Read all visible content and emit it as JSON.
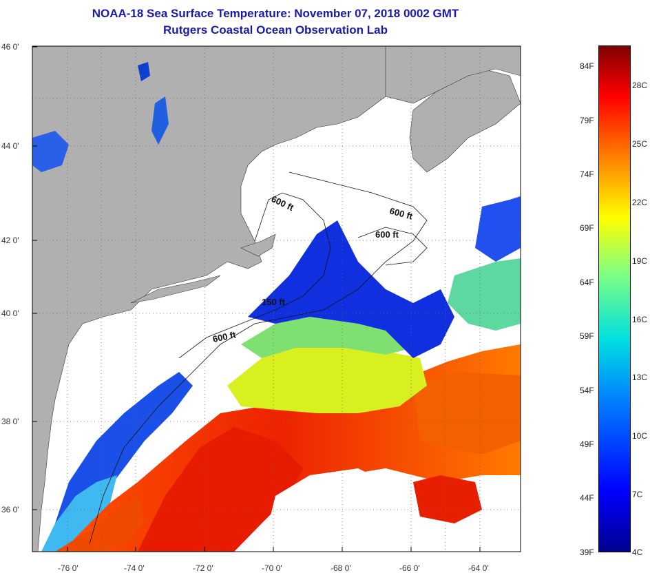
{
  "header": {
    "title": "NOAA-18 Sea Surface Temperature:  November 07, 2018 0002 GMT",
    "subtitle": "Rutgers Coastal Ocean Observation Lab"
  },
  "axes": {
    "lat_ticks": [
      "46 0'",
      "44 0'",
      "42 0'",
      "40 0'",
      "38 0'",
      "36 0'"
    ],
    "lon_ticks": [
      "-76 0'",
      "-74 0'",
      "-72 0'",
      "-70 0'",
      "-68 0'",
      "-66 0'",
      "-64 0'"
    ],
    "grid": "dotted"
  },
  "contours": [
    {
      "label": "600 ft"
    },
    {
      "label": "600 ft"
    },
    {
      "label": "600 ft"
    },
    {
      "label": "150 ft"
    },
    {
      "label": "600 ft"
    }
  ],
  "colorbar": {
    "fahrenheit": [
      "84F",
      "79F",
      "74F",
      "69F",
      "64F",
      "59F",
      "54F",
      "49F",
      "44F",
      "39F"
    ],
    "celsius": [
      "28C",
      "25C",
      "22C",
      "19C",
      "16C",
      "13C",
      "10C",
      "7C",
      "4C"
    ]
  },
  "colors": {
    "title": "#1a1aa8",
    "land": "#b0b0b0",
    "cloud": "#ffffff"
  }
}
